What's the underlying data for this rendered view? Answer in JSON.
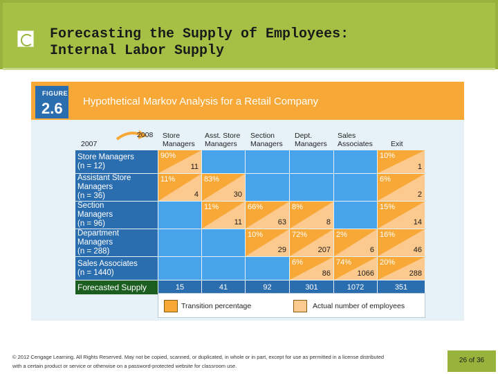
{
  "header": {
    "title": "Forecasting the Supply of Employees:\nInternal Labor Supply"
  },
  "figure": {
    "tag_word": "FIGURE",
    "tag_number": "2.6",
    "title": "Hypothetical Markov Analysis for a Retail Company",
    "year_from": "2007",
    "year_to": "2008",
    "columns": [
      "Store\nManagers",
      "Asst. Store\nManagers",
      "Section\nManagers",
      "Dept.\nManagers",
      "Sales\nAssociates",
      "Exit"
    ],
    "rows": [
      {
        "label": "Store Managers",
        "n": "(n = 12)",
        "cells": [
          {
            "pct": "90%",
            "num": "11"
          },
          null,
          null,
          null,
          null,
          {
            "pct": "10%",
            "num": "1"
          }
        ]
      },
      {
        "label": "Assistant Store\nManagers",
        "n": "(n = 36)",
        "cells": [
          {
            "pct": "11%",
            "num": "4"
          },
          {
            "pct": "83%",
            "num": "30"
          },
          null,
          null,
          null,
          {
            "pct": "6%",
            "num": "2"
          }
        ]
      },
      {
        "label": "Section\nManagers",
        "n": "(n = 96)",
        "cells": [
          null,
          {
            "pct": "11%",
            "num": "11"
          },
          {
            "pct": "66%",
            "num": "63"
          },
          {
            "pct": "8%",
            "num": "8"
          },
          null,
          {
            "pct": "15%",
            "num": "14"
          }
        ]
      },
      {
        "label": "Department\nManagers",
        "n": "(n = 288)",
        "cells": [
          null,
          null,
          {
            "pct": "10%",
            "num": "29"
          },
          {
            "pct": "72%",
            "num": "207"
          },
          {
            "pct": "2%",
            "num": "6"
          },
          {
            "pct": "16%",
            "num": "46"
          }
        ]
      },
      {
        "label": "Sales Associates",
        "n": "(n = 1440)",
        "cells": [
          null,
          null,
          null,
          {
            "pct": "6%",
            "num": "86"
          },
          {
            "pct": "74%",
            "num": "1066"
          },
          {
            "pct": "20%",
            "num": "288"
          }
        ]
      }
    ],
    "forecast": {
      "label": "Forecasted Supply",
      "values": [
        "15",
        "41",
        "92",
        "301",
        "1072",
        "351"
      ]
    },
    "legend": {
      "transition": "Transition percentage",
      "actual": "Actual number of employees"
    },
    "colors": {
      "orange": "#f7a836",
      "light_orange": "#fcc98e",
      "blue": "#2b6eb0",
      "cell_blue": "#47a4ea",
      "forecast_green": "#1b5e20"
    }
  },
  "footer": {
    "copyright": "© 2012 Cengage Learning. All Rights Reserved. May not be copied, scanned, or duplicated, in whole or in part, except for use as permitted in a license distributed with a certain product or service or otherwise on a password-protected website for classroom use."
  },
  "page": {
    "current": "26",
    "of": "of",
    "total": "36"
  }
}
